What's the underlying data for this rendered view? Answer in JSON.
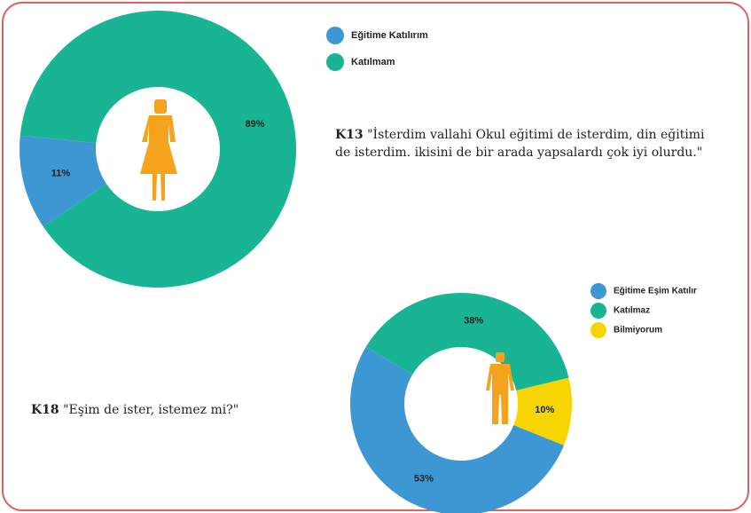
{
  "chart_data": [
    {
      "type": "pie",
      "categories": [
        "Eğitime Katılırım",
        "Katılmam"
      ],
      "values": [
        11,
        89
      ],
      "value_labels": [
        "11%",
        "89%"
      ],
      "colors": [
        "#3d97d3",
        "#19b493"
      ]
    },
    {
      "type": "pie",
      "categories": [
        "Eğitime Eşim Katılır",
        "Katılmaz",
        "Bilmiyorum"
      ],
      "values": [
        53,
        38,
        10
      ],
      "value_labels": [
        "53%",
        "38%",
        "10%"
      ],
      "colors": [
        "#3d97d3",
        "#19b493",
        "#f6d500"
      ]
    }
  ],
  "quotes": [
    {
      "id": "K13",
      "text": "\"İsterdim vallahi Okul eğitimi de isterdim, din eğitimi de isterdim. ikisini de bir arada yapsalardı çok iyi olurdu.\""
    },
    {
      "id": "K18",
      "text": "\"Eşim de ister, istemez mi?\""
    }
  ]
}
